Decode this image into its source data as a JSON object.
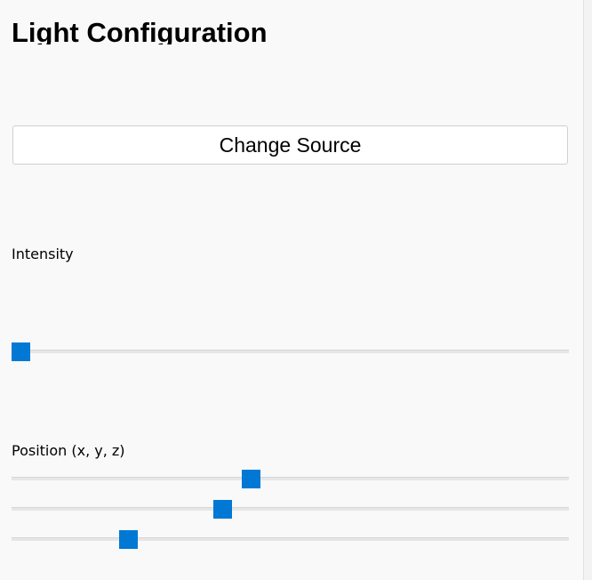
{
  "header": {
    "title": "Light Configuration"
  },
  "button": {
    "label": "Change Source"
  },
  "intensity": {
    "label": "Intensity"
  },
  "position": {
    "label": "Position (x, y, z)"
  }
}
